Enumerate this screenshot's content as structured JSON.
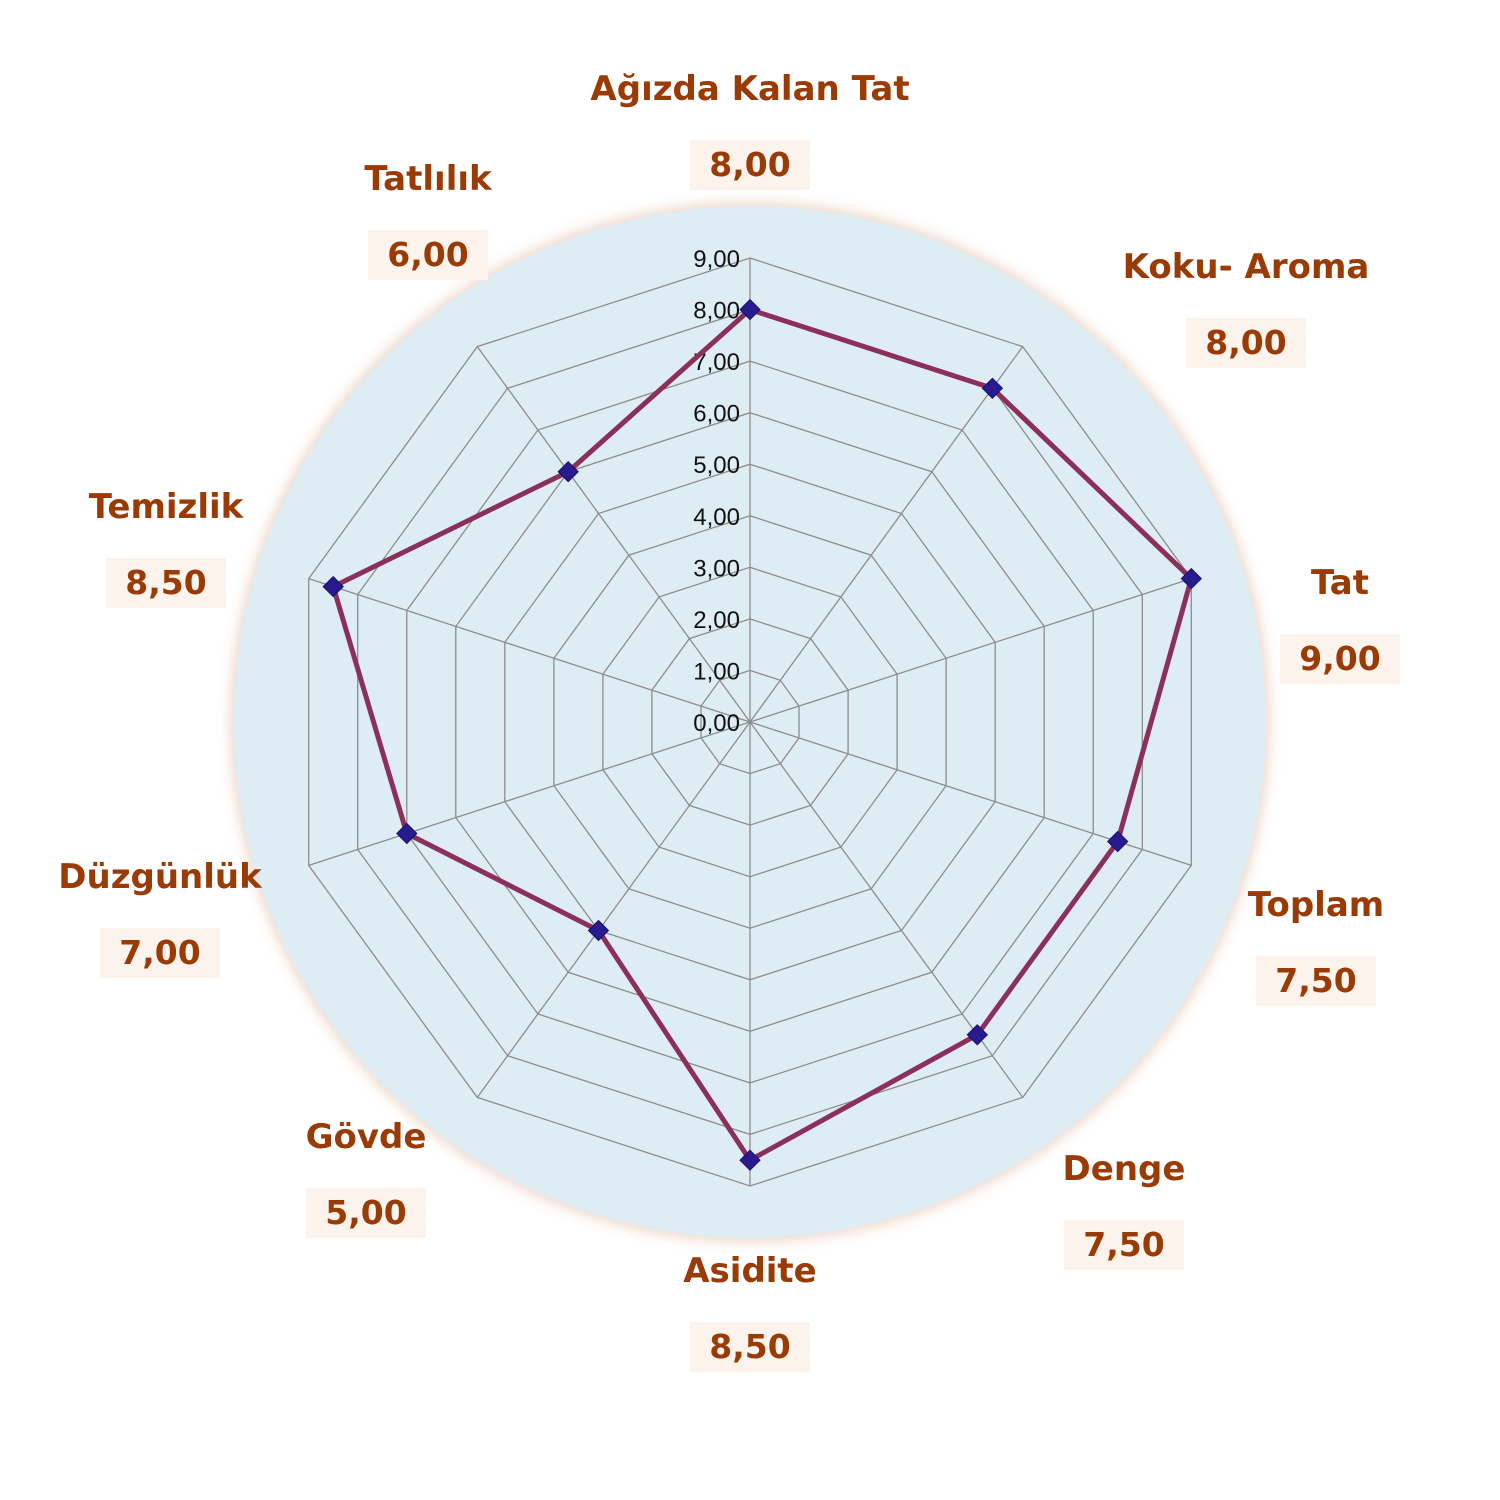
{
  "chart_data": {
    "type": "radar",
    "categories": [
      "Ağızda Kalan Tat",
      "Koku- Aroma",
      "Tat",
      "Toplam",
      "Denge",
      "Asidite",
      "Gövde",
      "Düzgünlük",
      "Temizlik",
      "Tatlılık"
    ],
    "values": [
      8.0,
      8.0,
      9.0,
      7.5,
      7.5,
      8.5,
      5.0,
      7.0,
      8.5,
      6.0
    ],
    "value_labels": [
      "8,00",
      "8,00",
      "9,00",
      "7,50",
      "7,50",
      "8,50",
      "5,00",
      "7,00",
      "8,50",
      "6,00"
    ],
    "ticks": [
      "0,00",
      "1,00",
      "2,00",
      "3,00",
      "4,00",
      "5,00",
      "6,00",
      "7,00",
      "8,00",
      "9,00"
    ],
    "rlim": [
      0,
      9
    ],
    "grid": true,
    "colors": {
      "line": "#8b2f5b",
      "marker": "#2a1a8f",
      "disc": "#deedf3",
      "label": "#9a3a04",
      "value_box": "#fbf3ec",
      "grid": "#8c8c8c"
    }
  }
}
